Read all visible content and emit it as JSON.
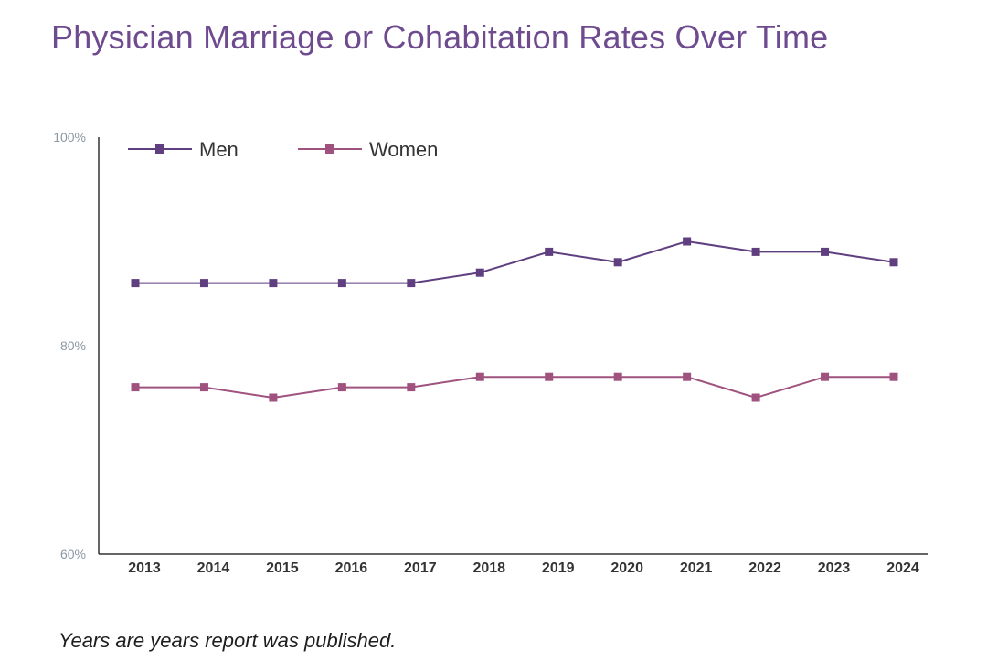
{
  "title": "Physician Marriage or Cohabitation Rates Over Time",
  "footnote": "Years are years report was published.",
  "chart_data": {
    "type": "line",
    "title": "Physician Marriage or Cohabitation Rates Over Time",
    "xlabel": "",
    "ylabel": "",
    "ylim": [
      60,
      100
    ],
    "y_ticks": [
      "60%",
      "80%",
      "100%"
    ],
    "y_tick_values": [
      60,
      80,
      100
    ],
    "categories": [
      "2013",
      "2014",
      "2015",
      "2016",
      "2017",
      "2018",
      "2019",
      "2020",
      "2021",
      "2022",
      "2023",
      "2024"
    ],
    "legend_position": "top-left",
    "grid": false,
    "series": [
      {
        "name": "Men",
        "color": "#5f3f7f",
        "marker": "square",
        "values": [
          86,
          86,
          86,
          86,
          86,
          87,
          89,
          88,
          90,
          89,
          89,
          88
        ]
      },
      {
        "name": "Women",
        "color": "#a0527f",
        "marker": "square",
        "values": [
          76,
          76,
          75,
          76,
          76,
          77,
          77,
          77,
          77,
          75,
          77,
          77
        ]
      }
    ]
  }
}
